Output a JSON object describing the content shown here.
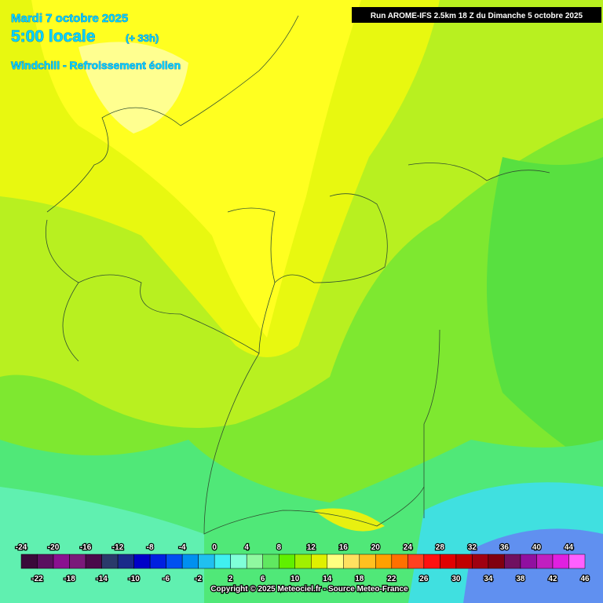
{
  "header": {
    "date": "Mardi 7 octobre 2025",
    "time": "5:00 locale",
    "offset": "(+ 33h)",
    "parameter": "Windchill - Refroissement éolien",
    "run": "Run AROME-IFS 2.5km 18 Z du Dimanche 5 octobre 2025"
  },
  "legend": {
    "ticks": [
      -24,
      -22,
      -20,
      -18,
      -16,
      -14,
      -12,
      -10,
      -8,
      -6,
      -4,
      -2,
      0,
      2,
      4,
      6,
      8,
      10,
      12,
      14,
      16,
      18,
      20,
      22,
      24,
      26,
      28,
      30,
      32,
      34,
      36,
      38,
      40,
      42,
      44,
      46
    ],
    "colors": [
      "#3a0a3a",
      "#5a1060",
      "#8a1090",
      "#7a1a7a",
      "#4a0a4a",
      "#2a3a6a",
      "#1a2a8a",
      "#0000c8",
      "#0020e0",
      "#0050f0",
      "#0090f0",
      "#20c0f0",
      "#40f0f0",
      "#80ffd8",
      "#90f8a0",
      "#60e860",
      "#60f000",
      "#a0f000",
      "#e0f000",
      "#ffff80",
      "#ffe060",
      "#ffc020",
      "#ffa000",
      "#ff7000",
      "#ff4020",
      "#ff1010",
      "#e00000",
      "#c00000",
      "#a00010",
      "#800010",
      "#701060",
      "#9010a0",
      "#c020c0",
      "#e020e0",
      "#ff60ff"
    ]
  },
  "footer": {
    "copyright": "Copyright © 2025 Meteociel.fr - Source Meteo-France"
  }
}
